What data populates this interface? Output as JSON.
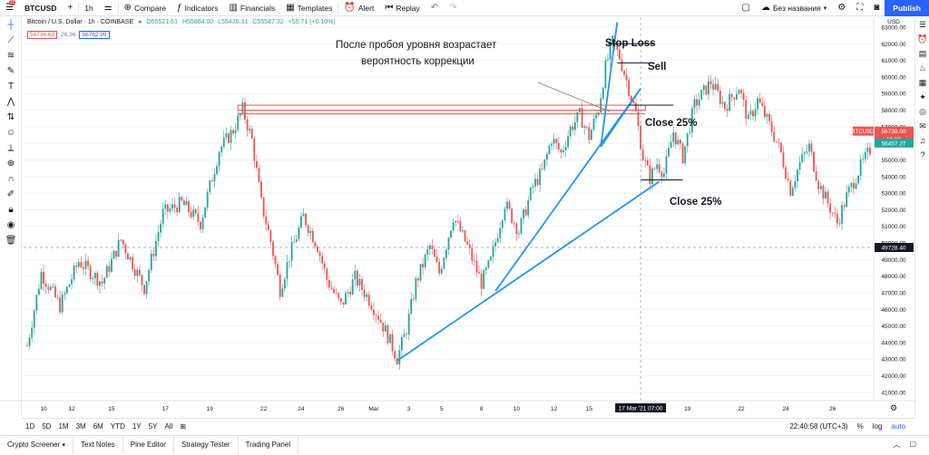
{
  "topbar": {
    "notif": "11",
    "symbol": "BTCUSD",
    "interval": "1h",
    "compare": "Compare",
    "indicators": "Indicators",
    "financials": "Financials",
    "templates": "Templates",
    "alert": "Alert",
    "replay": "Replay",
    "layout_name": "Без названия",
    "publish": "Publish"
  },
  "legend": {
    "title": "Bitcoin / U.S. Dollar · 1h · COINBASE",
    "o": "O55521.61",
    "h": "H55864.00",
    "l": "L55426.31",
    "c": "C55587.32",
    "chg": "+55.71 (+0.10%)",
    "bid": "56736.63",
    "spread": "26.36",
    "ask": "56762.99"
  },
  "annotations": {
    "note": [
      "После пробоя уровня возрастает",
      "вероятность коррекции"
    ],
    "stop_loss": "Stop Loss",
    "sell": "Sell",
    "close1": "Close 25%",
    "close2": "Close 25%"
  },
  "price_axis": {
    "currency": "USD",
    "ticks": [
      "63000.00",
      "62000.00",
      "61000.00",
      "60000.00",
      "59000.00",
      "58000.00",
      "57000.00",
      "56000.00",
      "55000.00",
      "54000.00",
      "53000.00",
      "52000.00",
      "51000.00",
      "50000.00",
      "49000.00",
      "48000.00",
      "47000.00",
      "46000.00",
      "45000.00",
      "44000.00",
      "43000.00",
      "42000.00",
      "41000.00"
    ],
    "btc_tag": "BTCUSD",
    "price_tag": "56738.00",
    "countdown": "19:03",
    "green_tag": "56457.27",
    "crosshair_tag": "49728.40"
  },
  "time_axis": {
    "ticks": [
      "10",
      "12",
      "15",
      "17",
      "19",
      "22",
      "24",
      "26",
      "Mar",
      "3",
      "5",
      "8",
      "10",
      "12",
      "15",
      "17 Mar '21",
      "07:00",
      "19",
      "22",
      "24",
      "26"
    ],
    "crosshair_label": "17 Mar '21   07:00"
  },
  "bottombar": {
    "ranges": [
      "1D",
      "5D",
      "1M",
      "3M",
      "6M",
      "YTD",
      "1Y",
      "5Y",
      "All"
    ],
    "time": "22:40:58 (UTC+3)",
    "pct": "%",
    "log": "log",
    "auto": "auto"
  },
  "tabs": [
    "Crypto Screener",
    "Text Notes",
    "Pine Editor",
    "Strategy Tester",
    "Trading Panel"
  ],
  "colors": {
    "up": "#26a69a",
    "down": "#ef5350",
    "trend": "#2196f3",
    "level": "#ef5350",
    "accent": "#2962ff"
  },
  "chart_data": {
    "type": "candlestick",
    "title": "Bitcoin / U.S. Dollar · 1h · COINBASE",
    "ylim": [
      40500,
      63600
    ],
    "path": [
      [
        0,
        43800
      ],
      [
        6,
        48200
      ],
      [
        14,
        46200
      ],
      [
        22,
        48900
      ],
      [
        32,
        47600
      ],
      [
        40,
        50200
      ],
      [
        50,
        47300
      ],
      [
        58,
        51800
      ],
      [
        66,
        52400
      ],
      [
        74,
        51200
      ],
      [
        82,
        55600
      ],
      [
        88,
        56800
      ],
      [
        92,
        58050
      ],
      [
        96,
        56200
      ],
      [
        100,
        52400
      ],
      [
        104,
        50100
      ],
      [
        108,
        47200
      ],
      [
        112,
        49200
      ],
      [
        118,
        51600
      ],
      [
        124,
        49800
      ],
      [
        128,
        47800
      ],
      [
        134,
        46200
      ],
      [
        140,
        47900
      ],
      [
        146,
        46600
      ],
      [
        150,
        45600
      ],
      [
        154,
        44400
      ],
      [
        158,
        43050
      ],
      [
        162,
        44800
      ],
      [
        166,
        47600
      ],
      [
        172,
        49800
      ],
      [
        176,
        48200
      ],
      [
        182,
        51600
      ],
      [
        188,
        49800
      ],
      [
        194,
        47600
      ],
      [
        198,
        48900
      ],
      [
        204,
        52400
      ],
      [
        210,
        50700
      ],
      [
        216,
        53400
      ],
      [
        220,
        54300
      ],
      [
        224,
        56300
      ],
      [
        228,
        55400
      ],
      [
        232,
        56900
      ],
      [
        236,
        57700
      ],
      [
        240,
        56400
      ],
      [
        244,
        58100
      ],
      [
        247,
        60600
      ],
      [
        250,
        62100
      ],
      [
        253,
        61200
      ],
      [
        256,
        59800
      ],
      [
        260,
        57800
      ],
      [
        263,
        55200
      ],
      [
        266,
        53900
      ],
      [
        269,
        54800
      ],
      [
        272,
        54200
      ],
      [
        276,
        56700
      ],
      [
        280,
        55200
      ],
      [
        285,
        58300
      ],
      [
        292,
        59700
      ],
      [
        298,
        58200
      ],
      [
        304,
        59400
      ],
      [
        308,
        57300
      ],
      [
        312,
        58600
      ],
      [
        318,
        56800
      ],
      [
        322,
        55400
      ],
      [
        326,
        53200
      ],
      [
        330,
        54800
      ],
      [
        334,
        55800
      ],
      [
        338,
        53600
      ],
      [
        342,
        52400
      ],
      [
        346,
        51200
      ],
      [
        350,
        52800
      ],
      [
        356,
        54600
      ],
      [
        360,
        55600
      ]
    ]
  }
}
